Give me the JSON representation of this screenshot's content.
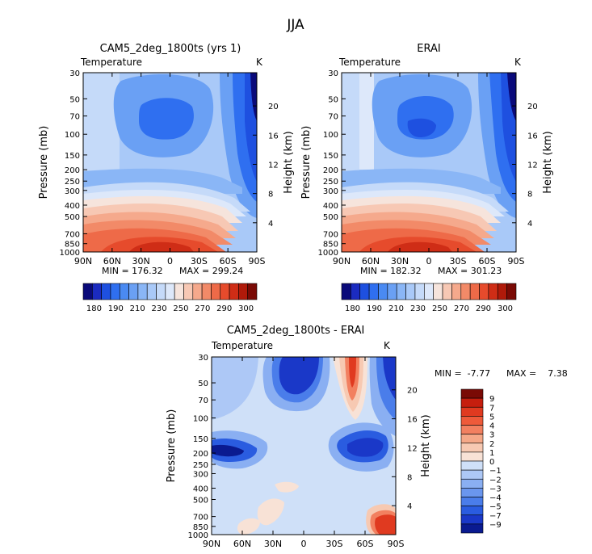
{
  "figure_title": "JJA",
  "chart_data": [
    {
      "type": "contour",
      "title": "CAM5_2deg_1800ts (yrs 1)",
      "variable": "Temperature",
      "units": "K",
      "xlabel": "",
      "ylabel": "Pressure (mb)",
      "y2label": "Height (km)",
      "x_ticks": [
        "90N",
        "60N",
        "30N",
        "0",
        "30S",
        "60S",
        "90S"
      ],
      "y_ticks": [
        "30",
        "50",
        "70",
        "100",
        "150",
        "200",
        "250",
        "300",
        "400",
        "500",
        "700",
        "850",
        "1000"
      ],
      "y2_ticks": [
        "20",
        "16",
        "12",
        "8",
        "4"
      ],
      "min_label": "MIN = 176.32",
      "max_label": "MAX = 299.24",
      "min": 176.32,
      "max": 299.24,
      "contour_levels": [
        180,
        190,
        200,
        210,
        220,
        230,
        240,
        250,
        260,
        270,
        280,
        290,
        300
      ]
    },
    {
      "type": "contour",
      "title": "ERAI",
      "variable": "Temperature",
      "units": "K",
      "xlabel": "",
      "ylabel": "Pressure (mb)",
      "y2label": "Height (km)",
      "x_ticks": [
        "90N",
        "60N",
        "30N",
        "0",
        "30S",
        "60S",
        "90S"
      ],
      "y_ticks": [
        "30",
        "50",
        "70",
        "100",
        "150",
        "200",
        "250",
        "300",
        "400",
        "500",
        "700",
        "850",
        "1000"
      ],
      "y2_ticks": [
        "20",
        "16",
        "12",
        "8",
        "4"
      ],
      "min_label": "MIN = 182.32",
      "max_label": "MAX = 301.23",
      "min": 182.32,
      "max": 301.23,
      "contour_levels": [
        180,
        190,
        200,
        210,
        220,
        230,
        240,
        250,
        260,
        270,
        280,
        290,
        300
      ]
    },
    {
      "type": "contour",
      "title": "CAM5_2deg_1800ts - ERAI",
      "variable": "Temperature",
      "units": "K",
      "xlabel": "",
      "ylabel": "Pressure (mb)",
      "y2label": "Height (km)",
      "x_ticks": [
        "90N",
        "60N",
        "30N",
        "0",
        "30S",
        "60S",
        "90S"
      ],
      "y_ticks": [
        "30",
        "50",
        "70",
        "100",
        "150",
        "200",
        "250",
        "300",
        "400",
        "500",
        "700",
        "850",
        "1000"
      ],
      "y2_ticks": [
        "20",
        "16",
        "12",
        "8",
        "4"
      ],
      "min_label": "MIN =  -7.77",
      "max_label": "MAX =    7.38",
      "min": -7.77,
      "max": 7.38,
      "contour_levels": [
        -9,
        -7,
        -5,
        -4,
        -3,
        -2,
        -1,
        0,
        1,
        2,
        3,
        4,
        5,
        7,
        9
      ]
    }
  ],
  "colorbars": {
    "absolute": {
      "labels": [
        "180",
        "190",
        "210",
        "230",
        "250",
        "270",
        "290",
        "300"
      ],
      "colors": [
        "#0a0a7a",
        "#1b2bc0",
        "#1e50e0",
        "#2f6ff0",
        "#4a8af2",
        "#6aa0f4",
        "#8ab6f6",
        "#a9c9f8",
        "#c5daf9",
        "#dde8fa",
        "#f6e4dc",
        "#f7c8b4",
        "#f5a98c",
        "#f28a68",
        "#ee6a48",
        "#e64b2c",
        "#cf2d16",
        "#b01a0a",
        "#7a0a05"
      ]
    },
    "difference": {
      "labels": [
        "9",
        "7",
        "5",
        "4",
        "3",
        "2",
        "1",
        "0",
        "−1",
        "−2",
        "−3",
        "−4",
        "−5",
        "−7",
        "−9"
      ],
      "colors": [
        "#7a0a05",
        "#c61e0e",
        "#e03a20",
        "#ee5a3a",
        "#f28060",
        "#f5a888",
        "#f7c9b2",
        "#f8e2d6",
        "#cfe0f8",
        "#adc8f6",
        "#8aaff2",
        "#6a96ee",
        "#4a7dea",
        "#2a5ce0",
        "#1a38c8",
        "#0a1a90"
      ]
    }
  }
}
